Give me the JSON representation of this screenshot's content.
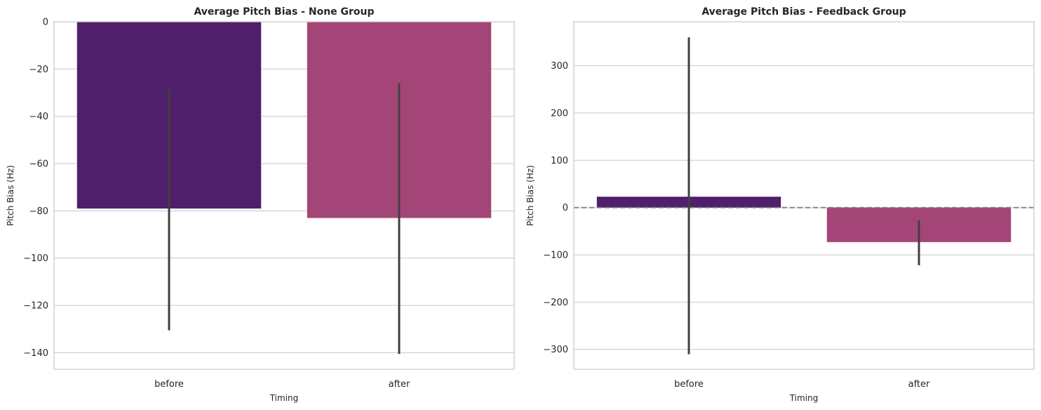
{
  "palette": {
    "before": "#4f1f6b",
    "after": "#a44577",
    "grid": "#cccccc",
    "error_bar": "#404040",
    "zero_line": "#808080"
  },
  "chart_data": [
    {
      "type": "bar",
      "title": "Average Pitch Bias - None Group",
      "xlabel": "Timing",
      "ylabel": "Pitch Bias (Hz)",
      "categories": [
        "before",
        "after"
      ],
      "values": [
        -79,
        -83
      ],
      "error_bars": [
        [
          -130.5,
          -28.5
        ],
        [
          -140.5,
          -26
        ]
      ],
      "ylim": [
        -147,
        0
      ],
      "yticks": [
        0,
        -20,
        -40,
        -60,
        -80,
        -100,
        -120,
        -140
      ],
      "ytick_labels": [
        "0",
        "−20",
        "−40",
        "−60",
        "−80",
        "−100",
        "−120",
        "−140"
      ],
      "grid": true,
      "zero_line": false
    },
    {
      "type": "bar",
      "title": "Average Pitch Bias - Feedback Group",
      "xlabel": "Timing",
      "ylabel": "Pitch Bias (Hz)",
      "categories": [
        "before",
        "after"
      ],
      "values": [
        23,
        -73
      ],
      "error_bars": [
        [
          -310,
          360
        ],
        [
          -122,
          -27
        ]
      ],
      "ylim": [
        -342,
        393
      ],
      "yticks": [
        300,
        200,
        100,
        0,
        -100,
        -200,
        -300
      ],
      "ytick_labels": [
        "300",
        "200",
        "100",
        "0",
        "−100",
        "−200",
        "−300"
      ],
      "grid": true,
      "zero_line": true
    }
  ]
}
